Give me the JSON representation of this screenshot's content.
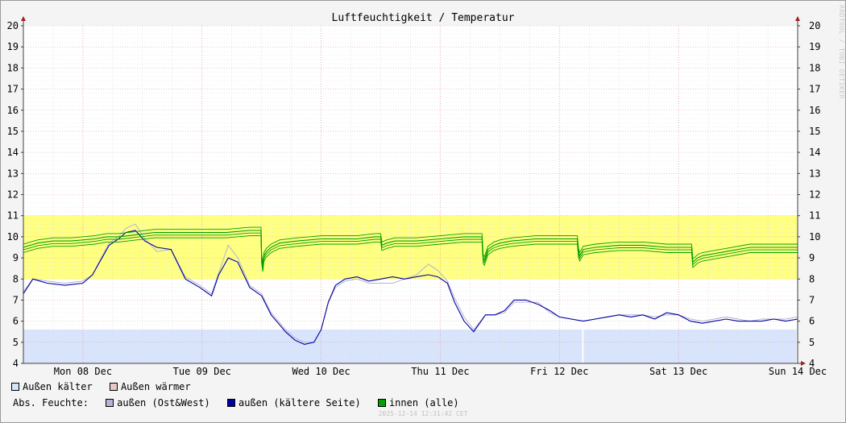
{
  "chart_data": {
    "type": "line",
    "title": "Luftfeuchtigkeit / Temperatur",
    "ylim": [
      4,
      20
    ],
    "y_ticks": [
      4,
      5,
      6,
      7,
      8,
      9,
      10,
      11,
      12,
      13,
      14,
      15,
      16,
      17,
      18,
      19,
      20
    ],
    "x_ticks": [
      "Mon 08 Dec",
      "Tue 09 Dec",
      "Wed 10 Dec",
      "Thu 11 Dec",
      "Fri 12 Dec",
      "Sat 13 Dec",
      "Sun 14 Dec"
    ],
    "x_range_days": [
      7.5,
      14.0
    ],
    "bands": [
      {
        "from": 8.0,
        "to": 11.0,
        "color": "#ffff80"
      },
      {
        "from": 4.0,
        "to": 5.6,
        "color": "#d8e4fc"
      }
    ],
    "series": [
      {
        "name": "außen (Ost&West)",
        "color": "#b4b4d4",
        "x": [
          7.5,
          7.58,
          7.7,
          7.85,
          8.0,
          8.08,
          8.22,
          8.3,
          8.36,
          8.44,
          8.52,
          8.62,
          8.74,
          8.86,
          8.98,
          9.08,
          9.14,
          9.22,
          9.3,
          9.4,
          9.5,
          9.58,
          9.64,
          9.7,
          9.78,
          9.86,
          9.94,
          10.0,
          10.06,
          10.12,
          10.2,
          10.3,
          10.4,
          10.5,
          10.6,
          10.7,
          10.8,
          10.9,
          10.98,
          11.06,
          11.12,
          11.2,
          11.28,
          11.38,
          11.46,
          11.54,
          11.62,
          11.72,
          11.82,
          11.92,
          12.0,
          12.1,
          12.2,
          12.3,
          12.4,
          12.5,
          12.6,
          12.7,
          12.8,
          12.9,
          13.0,
          13.1,
          13.2,
          13.3,
          13.4,
          13.5,
          13.6,
          13.7,
          13.8,
          13.9,
          14.0
        ],
        "y": [
          7.4,
          8.0,
          7.9,
          7.8,
          7.9,
          8.2,
          9.7,
          10.0,
          10.4,
          10.6,
          9.9,
          9.3,
          9.4,
          8.1,
          7.7,
          7.3,
          8.3,
          9.6,
          9.0,
          7.7,
          7.3,
          6.4,
          6.0,
          5.6,
          5.2,
          5.0,
          5.0,
          5.6,
          6.9,
          7.6,
          7.9,
          8.0,
          7.8,
          7.8,
          7.8,
          8.0,
          8.2,
          8.7,
          8.4,
          7.9,
          7.1,
          6.2,
          5.6,
          6.3,
          6.3,
          6.4,
          6.9,
          6.9,
          6.9,
          6.4,
          6.2,
          6.1,
          6.0,
          6.1,
          6.2,
          6.3,
          6.3,
          6.3,
          6.2,
          6.3,
          6.3,
          6.1,
          6.0,
          6.1,
          6.2,
          6.1,
          6.0,
          6.1,
          6.1,
          6.1,
          6.2
        ]
      },
      {
        "name": "außen (kältere Seite)",
        "color": "#0000a0",
        "x": [
          7.5,
          7.58,
          7.7,
          7.85,
          8.0,
          8.08,
          8.22,
          8.3,
          8.36,
          8.44,
          8.52,
          8.62,
          8.74,
          8.86,
          8.98,
          9.08,
          9.14,
          9.22,
          9.3,
          9.4,
          9.5,
          9.58,
          9.64,
          9.7,
          9.78,
          9.86,
          9.94,
          10.0,
          10.06,
          10.12,
          10.2,
          10.3,
          10.4,
          10.5,
          10.6,
          10.7,
          10.8,
          10.9,
          10.98,
          11.06,
          11.12,
          11.2,
          11.28,
          11.38,
          11.46,
          11.54,
          11.62,
          11.72,
          11.82,
          11.92,
          12.0,
          12.1,
          12.2,
          12.3,
          12.4,
          12.5,
          12.6,
          12.7,
          12.8,
          12.9,
          13.0,
          13.1,
          13.2,
          13.3,
          13.4,
          13.5,
          13.6,
          13.7,
          13.8,
          13.9,
          14.0
        ],
        "y": [
          7.3,
          8.0,
          7.8,
          7.7,
          7.8,
          8.2,
          9.6,
          9.9,
          10.2,
          10.3,
          9.8,
          9.5,
          9.4,
          8.0,
          7.6,
          7.2,
          8.2,
          9.0,
          8.8,
          7.6,
          7.2,
          6.3,
          5.9,
          5.5,
          5.1,
          4.9,
          5.0,
          5.6,
          6.9,
          7.7,
          8.0,
          8.1,
          7.9,
          8.0,
          8.1,
          8.0,
          8.1,
          8.2,
          8.1,
          7.8,
          6.9,
          6.0,
          5.5,
          6.3,
          6.3,
          6.5,
          7.0,
          7.0,
          6.8,
          6.5,
          6.2,
          6.1,
          6.0,
          6.1,
          6.2,
          6.3,
          6.2,
          6.3,
          6.1,
          6.4,
          6.3,
          6.0,
          5.9,
          6.0,
          6.1,
          6.0,
          6.0,
          6.0,
          6.1,
          6.0,
          6.1
        ]
      },
      {
        "name": "innen (alle)",
        "color": "#00a000",
        "x": [
          7.5,
          7.62,
          7.75,
          7.9,
          8.1,
          8.2,
          8.3,
          8.45,
          8.6,
          8.8,
          9.0,
          9.2,
          9.4,
          9.495,
          9.5,
          9.51,
          9.52,
          9.54,
          9.58,
          9.65,
          9.8,
          10.0,
          10.15,
          10.3,
          10.45,
          10.5,
          10.51,
          10.55,
          10.62,
          10.8,
          11.0,
          11.2,
          11.3,
          11.35,
          11.36,
          11.37,
          11.4,
          11.45,
          11.5,
          11.6,
          11.8,
          12.0,
          12.1,
          12.15,
          12.16,
          12.17,
          12.2,
          12.3,
          12.5,
          12.7,
          12.9,
          13.0,
          13.1,
          13.11,
          13.12,
          13.16,
          13.2,
          13.4,
          13.6,
          13.8,
          14.0
        ],
        "y": [
          9.5,
          9.7,
          9.8,
          9.8,
          9.9,
          10.0,
          10.0,
          10.1,
          10.2,
          10.2,
          10.2,
          10.2,
          10.3,
          10.3,
          9.0,
          8.6,
          9.1,
          9.3,
          9.5,
          9.7,
          9.8,
          9.9,
          9.9,
          9.9,
          10.0,
          10.0,
          9.6,
          9.7,
          9.8,
          9.8,
          9.9,
          10.0,
          10.0,
          10.0,
          9.0,
          8.9,
          9.4,
          9.6,
          9.7,
          9.8,
          9.9,
          9.9,
          9.9,
          9.9,
          9.3,
          9.1,
          9.4,
          9.5,
          9.6,
          9.6,
          9.5,
          9.5,
          9.5,
          9.5,
          8.8,
          9.0,
          9.1,
          9.3,
          9.5,
          9.5,
          9.5
        ]
      }
    ]
  },
  "legend": {
    "row1": [
      {
        "label": "Außen kälter",
        "color": "#d8e4fc"
      },
      {
        "label": "Außen wärmer",
        "color": "#e8c8c8"
      }
    ],
    "row2_prefix": "Abs. Feuchte:",
    "row2": [
      {
        "label": "außen (Ost&West)",
        "color": "#b4b4d4"
      },
      {
        "label": "außen (kältere Seite)",
        "color": "#0000a0"
      },
      {
        "label": "innen (alle)",
        "color": "#00a000"
      }
    ]
  },
  "timestamp": "2025-12-14 12:31:42 CET",
  "watermark": "RRDTOOL / TOBI OETIKER"
}
